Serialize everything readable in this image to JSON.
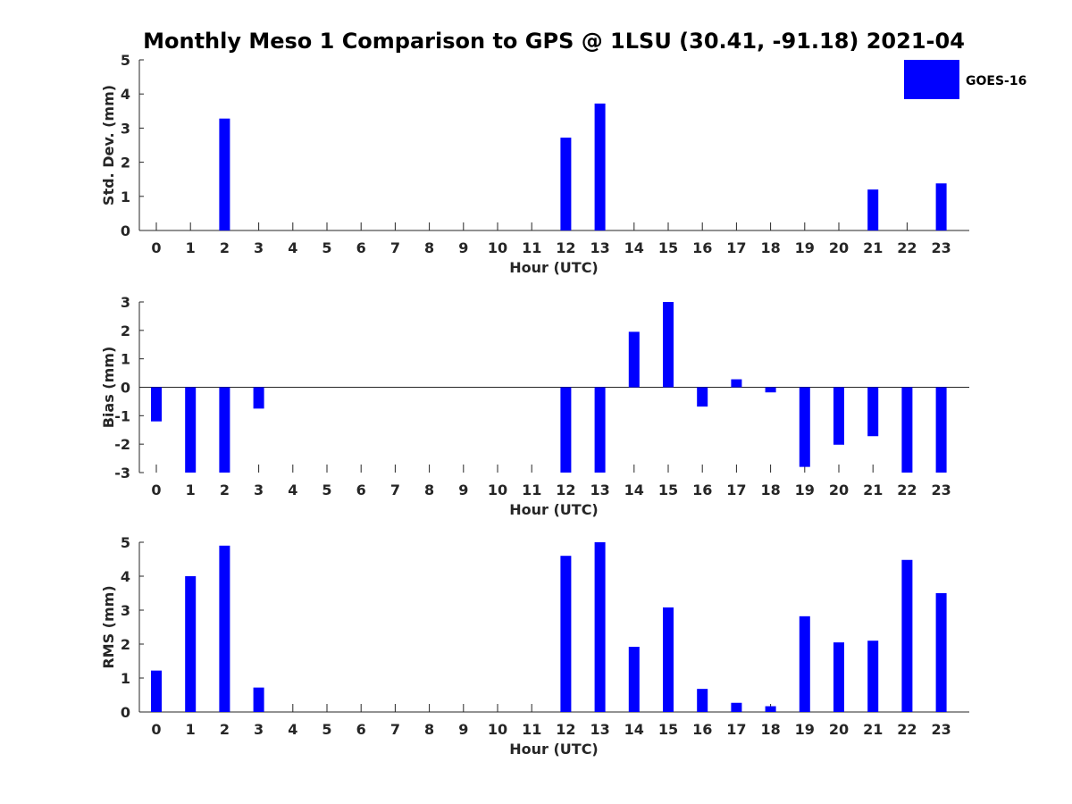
{
  "chart_data": {
    "type": "bar",
    "title": "Monthly Meso 1 Comparison to GPS @ 1LSU (30.41, -91.18) 2021-04",
    "legend": {
      "entries": [
        "GOES-16"
      ],
      "placement": "top-right",
      "color": "#0000ff"
    },
    "bar_color": "#0000ff",
    "categories": [
      "0",
      "1",
      "2",
      "3",
      "4",
      "5",
      "6",
      "7",
      "8",
      "9",
      "10",
      "11",
      "12",
      "13",
      "14",
      "15",
      "16",
      "17",
      "18",
      "19",
      "20",
      "21",
      "22",
      "23"
    ],
    "panels": [
      {
        "ylabel": "Std. Dev. (mm)",
        "xlabel": "Hour (UTC)",
        "ylim": [
          0,
          5
        ],
        "yticks": [
          "0",
          "1",
          "2",
          "3",
          "4",
          "5"
        ],
        "series": [
          {
            "name": "GOES-16",
            "values": [
              0,
              0,
              3.28,
              0,
              0,
              0,
              0,
              0,
              0,
              0,
              0,
              0,
              2.72,
              3.72,
              0,
              0,
              0,
              0,
              0,
              0,
              0,
              1.2,
              0,
              1.38
            ]
          }
        ]
      },
      {
        "ylabel": "Bias (mm)",
        "xlabel": "Hour (UTC)",
        "ylim": [
          -3,
          3
        ],
        "yticks": [
          "-3",
          "-2",
          "-1",
          "0",
          "1",
          "2",
          "3"
        ],
        "series": [
          {
            "name": "GOES-16",
            "values": [
              -1.2,
              -3.0,
              -3.0,
              -0.75,
              0,
              0,
              0,
              0,
              0,
              0,
              0,
              0,
              -3.0,
              -3.0,
              1.95,
              3.0,
              -0.68,
              0.28,
              -0.18,
              -2.8,
              -2.02,
              -1.72,
              -3.0,
              -3.0
            ]
          }
        ]
      },
      {
        "ylabel": "RMS (mm)",
        "xlabel": "Hour (UTC)",
        "ylim": [
          0,
          5
        ],
        "yticks": [
          "0",
          "1",
          "2",
          "3",
          "4",
          "5"
        ],
        "series": [
          {
            "name": "GOES-16",
            "values": [
              1.22,
              4.0,
              4.9,
              0.72,
              0,
              0,
              0,
              0,
              0,
              0,
              0,
              0,
              4.6,
              5.0,
              1.92,
              3.08,
              0.68,
              0.27,
              0.17,
              2.82,
              2.05,
              2.1,
              4.48,
              3.5
            ]
          }
        ]
      }
    ]
  }
}
